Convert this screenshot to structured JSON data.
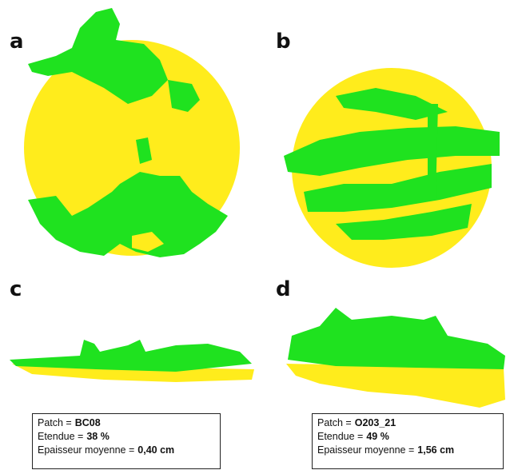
{
  "panels": [
    {
      "label": "a"
    },
    {
      "label": "b"
    },
    {
      "label": "c"
    },
    {
      "label": "d"
    }
  ],
  "info_boxes": [
    {
      "lines": [
        {
          "label": "Patch =",
          "value": "BC08"
        },
        {
          "label": "Etendue =",
          "value": "38 %"
        },
        {
          "label": "Epaisseur moyenne =",
          "value": "0,40 cm"
        }
      ]
    },
    {
      "lines": [
        {
          "label": "Patch =",
          "value": "O203_21"
        },
        {
          "label": "Etendue =",
          "value": "49 %"
        },
        {
          "label": "Epaisseur moyenne =",
          "value": "1,56 cm"
        }
      ]
    }
  ]
}
